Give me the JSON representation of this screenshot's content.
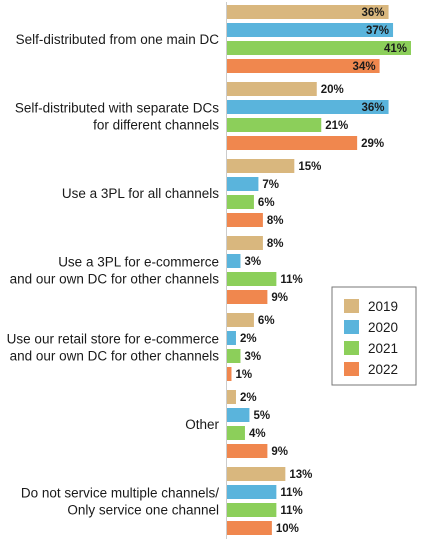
{
  "chart_data": {
    "type": "bar",
    "orientation": "horizontal",
    "categories": [
      [
        "Self-distributed from one main DC"
      ],
      [
        "Self-distributed with separate DCs",
        "for different channels"
      ],
      [
        "Use a 3PL for all channels"
      ],
      [
        "Use a 3PL for e-commerce",
        "and our own DC for other channels"
      ],
      [
        "Use our retail store for e-commerce",
        "and our own DC for other channels"
      ],
      [
        "Other"
      ],
      [
        "Do not service multiple channels/",
        "Only service one channel"
      ]
    ],
    "series": [
      {
        "name": "2019",
        "color": "#d9b77e",
        "values": [
          36,
          20,
          15,
          8,
          6,
          2,
          13
        ]
      },
      {
        "name": "2020",
        "color": "#5ab4dc",
        "values": [
          37,
          36,
          7,
          3,
          2,
          5,
          11
        ]
      },
      {
        "name": "2021",
        "color": "#8ccf5a",
        "values": [
          41,
          21,
          6,
          11,
          3,
          4,
          11
        ]
      },
      {
        "name": "2022",
        "color": "#f0874e",
        "values": [
          34,
          29,
          8,
          9,
          1,
          9,
          10
        ]
      }
    ],
    "value_suffix": "%",
    "xlim": [
      0,
      42
    ],
    "legend_position": "right",
    "grid": false
  }
}
